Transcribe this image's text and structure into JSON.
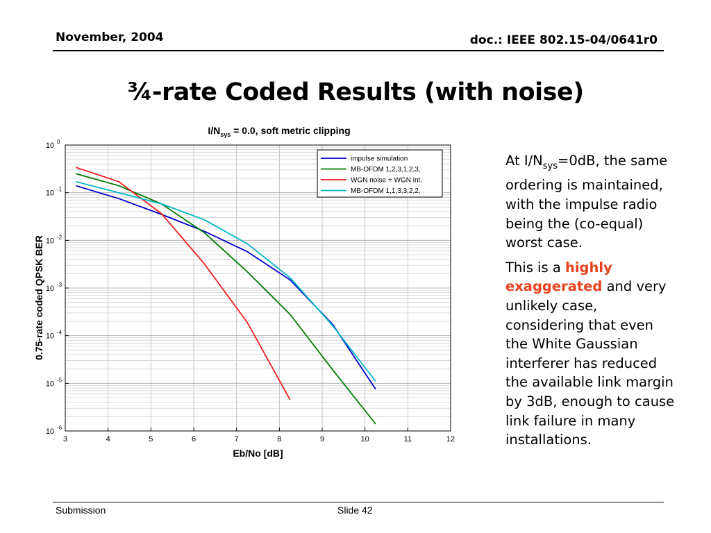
{
  "header": {
    "date": "November, 2004",
    "doc_id": "doc.: IEEE 802.15-04/0641r0"
  },
  "slide_title": "¾-rate Coded Results (with noise)",
  "body": {
    "para1_a": "At I/N",
    "para1_sub": "sys",
    "para1_b": "=0dB, the same ordering is maintained,  with the impulse radio being the (co-equal) worst case.",
    "para2_a": "This is a ",
    "para2_highlight": "highly exaggerated",
    "para2_b": " and very unlikely case, considering that even the White Gaussian interferer has reduced the available link margin by 3dB, enough to cause link failure in many installations.",
    "highlight_color": "#e8401c"
  },
  "footer": {
    "left": "Submission",
    "center": "Slide 42"
  },
  "chart_data": {
    "type": "line",
    "title_prefix": "I/N",
    "title_sub": "sys",
    "title_suffix": " =  0.0, soft metric clipping",
    "xlabel": "Eb/No [dB]",
    "ylabel": "0.75-rate coded QPSK BER",
    "xlim": [
      3,
      12
    ],
    "ylim": [
      1e-06,
      1
    ],
    "yscale": "log",
    "xticks": [
      3,
      4,
      5,
      6,
      7,
      8,
      9,
      10,
      11,
      12
    ],
    "yticks": [
      {
        "base": "10",
        "exp": "0"
      },
      {
        "base": "10",
        "exp": "-1"
      },
      {
        "base": "10",
        "exp": "-2"
      },
      {
        "base": "10",
        "exp": "-3"
      },
      {
        "base": "10",
        "exp": "-4"
      },
      {
        "base": "10",
        "exp": "-5"
      },
      {
        "base": "10",
        "exp": "-6"
      }
    ],
    "grid": true,
    "legend_position": "top-right",
    "series": [
      {
        "name": "impulse simulation",
        "color": "#0000cc",
        "points": [
          [
            3.25,
            0.14
          ],
          [
            4.25,
            0.075
          ],
          [
            5.25,
            0.035
          ],
          [
            6.25,
            0.0155
          ],
          [
            7.25,
            0.0058
          ],
          [
            8.25,
            0.00148
          ],
          [
            9.25,
            0.00017
          ],
          [
            10.25,
            7.5e-06
          ]
        ]
      },
      {
        "name": "MB-OFDM 1,2,3,1,2,3,",
        "color": "#007a00",
        "points": [
          [
            3.25,
            0.25
          ],
          [
            4.25,
            0.14
          ],
          [
            5.25,
            0.058
          ],
          [
            6.25,
            0.0145
          ],
          [
            7.25,
            0.0022
          ],
          [
            8.25,
            0.00028
          ],
          [
            9.25,
            1.9e-05
          ],
          [
            10.25,
            1.4e-06
          ]
        ]
      },
      {
        "name": "WGN noise + WGN int.",
        "color": "#ee1c1c",
        "points": [
          [
            3.25,
            0.34
          ],
          [
            4.25,
            0.17
          ],
          [
            5.25,
            0.036
          ],
          [
            6.25,
            0.0032
          ],
          [
            7.25,
            0.00019
          ],
          [
            8.25,
            4.5e-06
          ]
        ]
      },
      {
        "name": "MB-OFDM 1,1,3,3,2,2,",
        "color": "#00b8c8",
        "points": [
          [
            3.25,
            0.17
          ],
          [
            4.25,
            0.1
          ],
          [
            5.25,
            0.058
          ],
          [
            6.25,
            0.027
          ],
          [
            7.25,
            0.0085
          ],
          [
            8.25,
            0.00165
          ],
          [
            9.25,
            0.00016
          ],
          [
            10.25,
            1.1e-05
          ]
        ]
      }
    ]
  }
}
